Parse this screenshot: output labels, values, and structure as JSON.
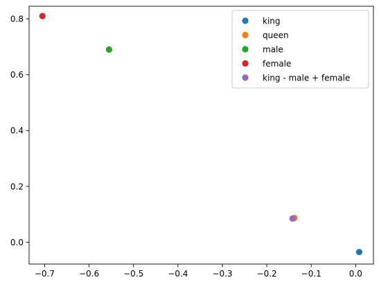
{
  "chart_data": {
    "type": "scatter",
    "title": "",
    "xlabel": "",
    "ylabel": "",
    "xlim": [
      -0.735,
      0.04
    ],
    "ylim": [
      -0.078,
      0.845
    ],
    "x_ticks": [
      -0.7,
      -0.6,
      -0.5,
      -0.4,
      -0.3,
      -0.2,
      -0.1,
      0.0
    ],
    "x_tick_labels": [
      "−0.7",
      "−0.6",
      "−0.5",
      "−0.4",
      "−0.3",
      "−0.2",
      "−0.1",
      "0.0"
    ],
    "y_ticks": [
      0.0,
      0.2,
      0.4,
      0.6,
      0.8
    ],
    "y_tick_labels": [
      "0.0",
      "0.2",
      "0.4",
      "0.6",
      "0.8"
    ],
    "grid": false,
    "legend_position": "top-right",
    "series": [
      {
        "name": "king",
        "color": "#1f77b4",
        "points": [
          {
            "x": 0.008,
            "y": -0.035
          }
        ]
      },
      {
        "name": "queen",
        "color": "#ff7f0e",
        "points": [
          {
            "x": -0.138,
            "y": 0.087
          }
        ]
      },
      {
        "name": "male",
        "color": "#2ca02c",
        "points": [
          {
            "x": -0.555,
            "y": 0.69
          }
        ]
      },
      {
        "name": "female",
        "color": "#d62728",
        "points": [
          {
            "x": -0.705,
            "y": 0.81
          }
        ]
      },
      {
        "name": "king - male + female",
        "color": "#9467bd",
        "points": [
          {
            "x": -0.142,
            "y": 0.085
          }
        ]
      }
    ]
  }
}
